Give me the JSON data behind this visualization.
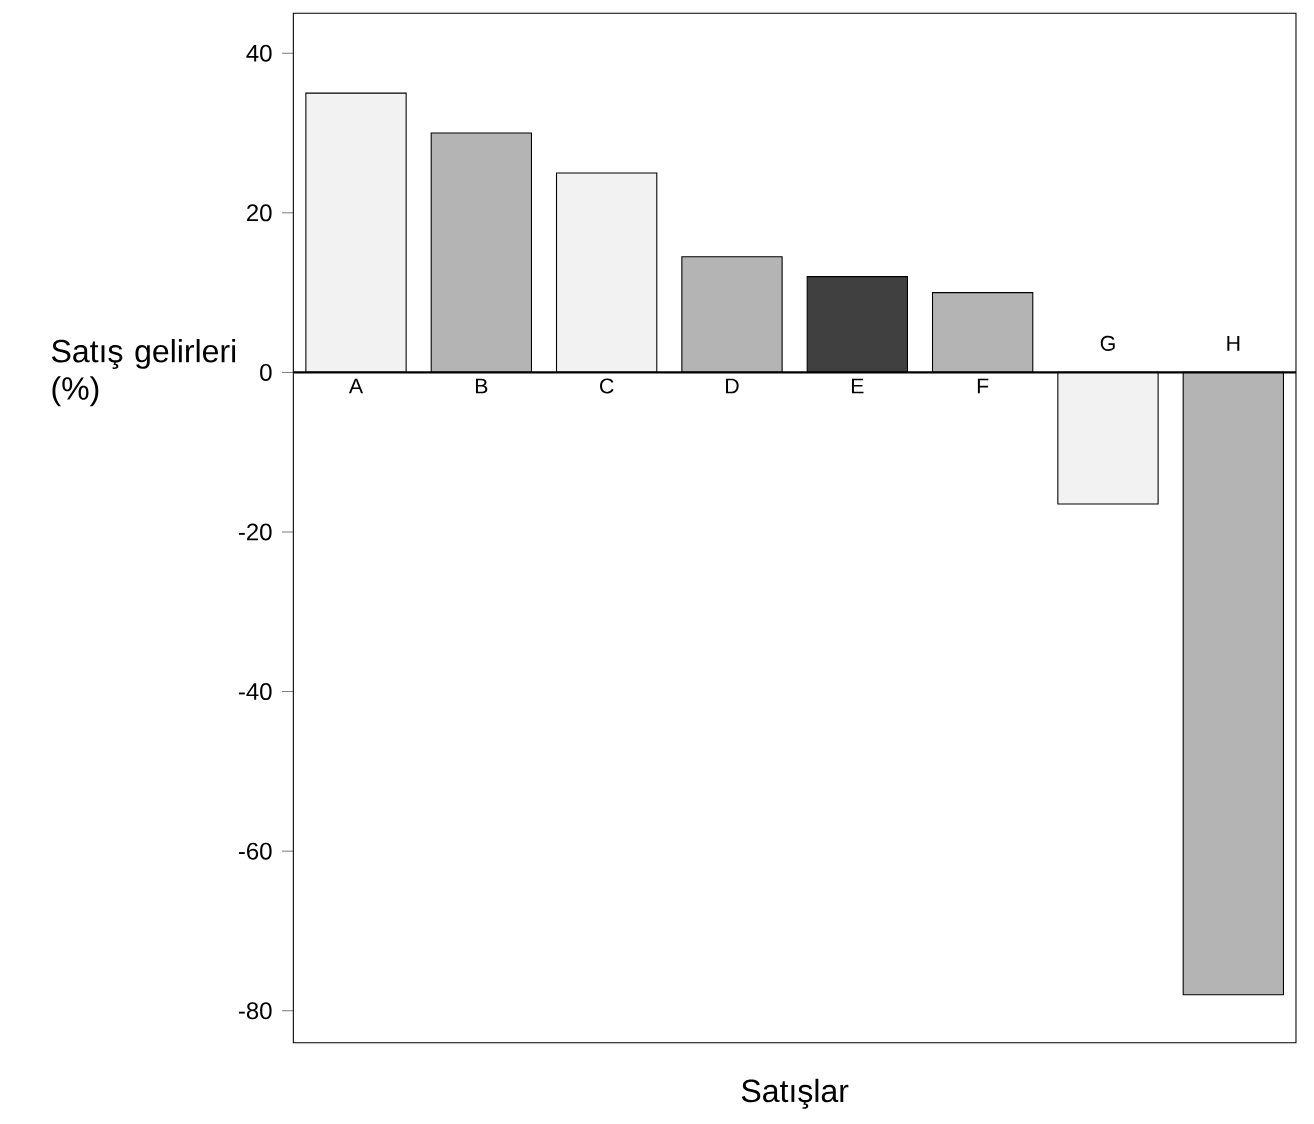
{
  "chart_data": {
    "type": "bar",
    "xlabel": "Satışlar",
    "ylabel": "Satış gelirleri (%)",
    "categories": [
      "A",
      "B",
      "C",
      "D",
      "E",
      "F",
      "G",
      "H"
    ],
    "values": [
      35,
      30,
      25,
      14.5,
      12,
      10,
      -16.5,
      -78
    ],
    "colors": [
      "#f2f2f2",
      "#b4b4b4",
      "#f2f2f2",
      "#b4b4b4",
      "#404040",
      "#b4b4b4",
      "#f2f2f2",
      "#b4b4b4"
    ],
    "ylim": [
      -84,
      45
    ],
    "yticks": [
      -80,
      -60,
      -40,
      -20,
      0,
      20,
      40
    ]
  }
}
